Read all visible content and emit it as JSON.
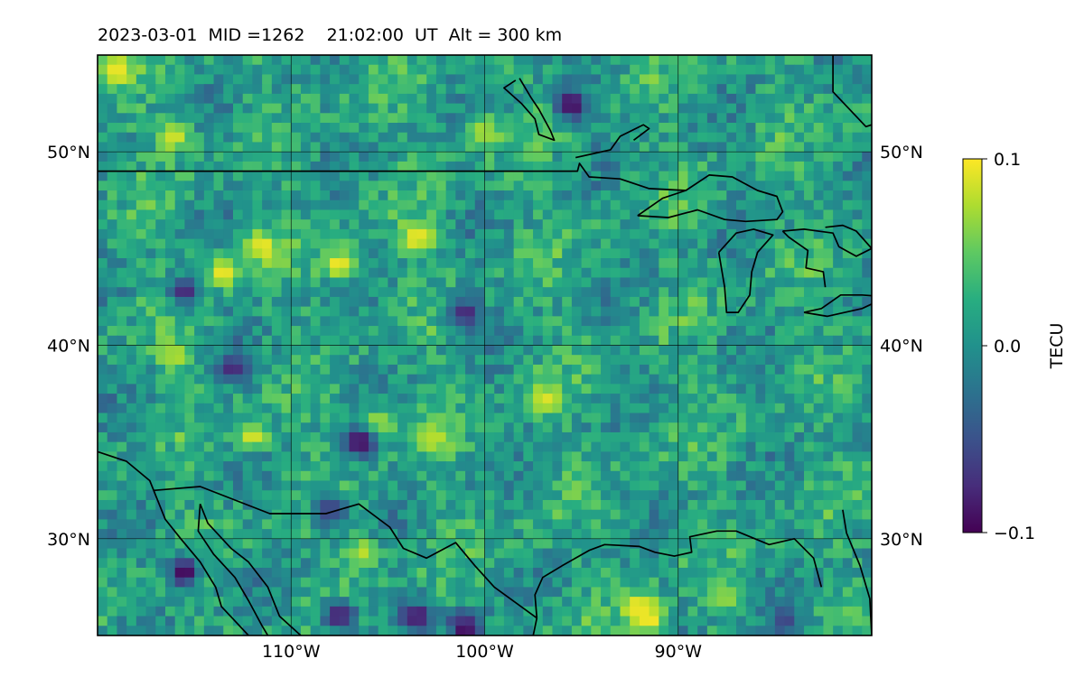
{
  "title": "2023-03-01  MID =1262    21:02:00  UT  Alt = 300 km",
  "chart_data": {
    "type": "heatmap",
    "title": "2023-03-01  MID =1262    21:02:00  UT  Alt = 300 km",
    "lon_range": [
      -120,
      -80
    ],
    "lat_range": [
      25,
      55
    ],
    "lon_ticks": [
      {
        "value": -110,
        "label": "110°W"
      },
      {
        "value": -100,
        "label": "100°W"
      },
      {
        "value": -90,
        "label": "90°W"
      }
    ],
    "lat_ticks": [
      {
        "value": 50,
        "label": "50°N"
      },
      {
        "value": 40,
        "label": "40°N"
      },
      {
        "value": 30,
        "label": "30°N"
      }
    ],
    "grid": true,
    "colormap": "viridis",
    "colorbar": {
      "label": "TECU",
      "range": [
        -0.1,
        0.1
      ],
      "ticks": [
        {
          "value": 0.1,
          "label": "0.1"
        },
        {
          "value": 0.0,
          "label": "0.0"
        },
        {
          "value": -0.1,
          "label": "−0.1"
        }
      ]
    },
    "field_summary": "Noisy differential TEC field mostly between -0.03 and 0.05 TECU; strong positive patch near 91-93W, 25-27N; negative patches near 104-108W 34-36N and 113-116W 28-29N",
    "hotspots": [
      {
        "lon": -91.5,
        "lat": 25.8,
        "value": 0.1
      },
      {
        "lon": -92,
        "lat": 26.5,
        "value": 0.1
      },
      {
        "lon": -103.5,
        "lat": 45.6,
        "value": 0.1
      },
      {
        "lon": -107.5,
        "lat": 44.2,
        "value": 0.1
      },
      {
        "lon": -111.5,
        "lat": 45.1,
        "value": 0.1
      },
      {
        "lon": -113.5,
        "lat": 43.8,
        "value": 0.1
      },
      {
        "lon": -119,
        "lat": 54.2,
        "value": 0.1
      },
      {
        "lon": -116,
        "lat": 50.8,
        "value": 0.09
      },
      {
        "lon": -96.8,
        "lat": 37.2,
        "value": 0.09
      },
      {
        "lon": -112,
        "lat": 35.3,
        "value": 0.09
      },
      {
        "lon": -105.5,
        "lat": 36.0,
        "value": 0.08
      },
      {
        "lon": -102.5,
        "lat": 35.2,
        "value": 0.08
      },
      {
        "lon": -116,
        "lat": 39.5,
        "value": 0.08
      },
      {
        "lon": -100,
        "lat": 51.0,
        "value": 0.08
      },
      {
        "lon": -106.3,
        "lat": 29.3,
        "value": 0.08
      },
      {
        "lon": -87.5,
        "lat": 27.0,
        "value": 0.07
      },
      {
        "lon": -95.5,
        "lat": 52.5,
        "value": -0.1
      },
      {
        "lon": -115.5,
        "lat": 28.3,
        "value": -0.1
      },
      {
        "lon": -106.5,
        "lat": 35.0,
        "value": -0.1
      },
      {
        "lon": -101.0,
        "lat": 25.4,
        "value": -0.1
      },
      {
        "lon": -103.5,
        "lat": 26.0,
        "value": -0.09
      },
      {
        "lon": -107.5,
        "lat": 26.0,
        "value": -0.09
      },
      {
        "lon": -113,
        "lat": 38.8,
        "value": -0.08
      },
      {
        "lon": -115.5,
        "lat": 42.8,
        "value": -0.08
      },
      {
        "lon": -101,
        "lat": 41.7,
        "value": -0.08
      },
      {
        "lon": -84.5,
        "lat": 25.8,
        "value": -0.06
      },
      {
        "lon": -108,
        "lat": 31.5,
        "value": -0.07
      }
    ]
  }
}
